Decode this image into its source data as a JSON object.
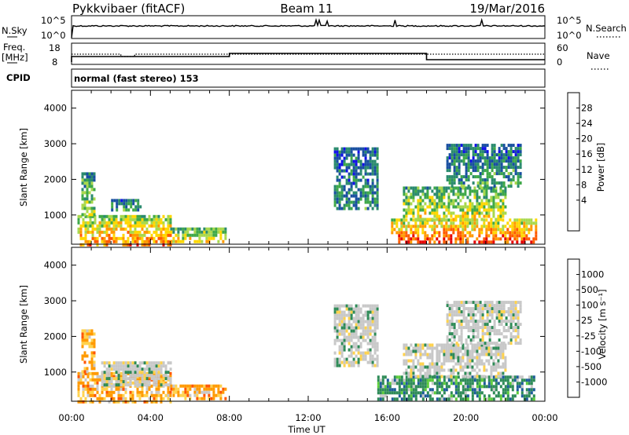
{
  "header": {
    "radar": "Pykkvibaer (fitACF)",
    "beam": "Beam 11",
    "date": "19/Mar/2016"
  },
  "top_panels": {
    "nsky_label": "N.Sky",
    "nsearch_label": "N.Search",
    "noise_ticks": [
      "10^5",
      "10^0"
    ],
    "freq_label": "Freq.",
    "freq_unit": "[MHz]",
    "freq_ticks": [
      "18",
      "8"
    ],
    "nave_label": "Nave",
    "nave_ticks": [
      "60",
      "0"
    ],
    "cpid_label": "CPID",
    "cpid_value": "normal (fast stereo) 153"
  },
  "chart_data": [
    {
      "type": "heatmap",
      "name": "power",
      "ylabel": "Slant Range [km]",
      "xlabel": "",
      "ylim": [
        180,
        4500
      ],
      "yticks": [
        1000,
        2000,
        3000,
        4000
      ],
      "x_ticks": [
        "00:00",
        "04:00",
        "08:00",
        "12:00",
        "16:00",
        "20:00",
        "00:00"
      ],
      "colorbar": {
        "label": "Power [dB]",
        "ticks": [
          "28",
          "24",
          "20",
          "16",
          "12",
          "8",
          "4"
        ],
        "colors": [
          "#e60000",
          "#ff5a00",
          "#ff9900",
          "#ffd700",
          "#a8d84c",
          "#3ea848",
          "#2a8a6e",
          "#184fa0",
          "#1010e8"
        ]
      },
      "echo_regions": [
        {
          "t0": 0.3,
          "t1": 5.0,
          "r0": 200,
          "r1": 1000,
          "level": 0.75
        },
        {
          "t0": 0.5,
          "t1": 1.2,
          "r0": 1000,
          "r1": 2200,
          "level": 0.45
        },
        {
          "t0": 2.0,
          "t1": 3.5,
          "r0": 1100,
          "r1": 1450,
          "level": 0.35
        },
        {
          "t0": 5.0,
          "t1": 7.8,
          "r0": 250,
          "r1": 650,
          "level": 0.6
        },
        {
          "t0": 13.3,
          "t1": 15.5,
          "r0": 1200,
          "r1": 2900,
          "level": 0.25
        },
        {
          "t0": 16.2,
          "t1": 23.5,
          "r0": 250,
          "r1": 900,
          "level": 0.85
        },
        {
          "t0": 16.8,
          "t1": 22.0,
          "r0": 900,
          "r1": 1800,
          "level": 0.55
        },
        {
          "t0": 19.0,
          "t1": 22.8,
          "r0": 1800,
          "r1": 3000,
          "level": 0.3
        }
      ]
    },
    {
      "type": "heatmap",
      "name": "velocity",
      "ylabel": "Slant Range [km]",
      "xlabel": "Time UT",
      "ylim": [
        180,
        4500
      ],
      "yticks": [
        1000,
        2000,
        3000,
        4000
      ],
      "x_ticks": [
        "00:00",
        "04:00",
        "08:00",
        "12:00",
        "16:00",
        "20:00",
        "00:00"
      ],
      "colorbar": {
        "label": "Velocity [m s⁻¹]",
        "ticks": [
          "1000",
          "500",
          "100",
          "25",
          "-25",
          "-100",
          "-500",
          "-1000"
        ],
        "colors": [
          "#1d2fd0",
          "#1e5c9a",
          "#2e8b57",
          "#5ccc3a",
          "#c8c8c8",
          "#ffd24d",
          "#ff9a00",
          "#ff5500",
          "#e60000"
        ]
      },
      "echo_regions": [
        {
          "t0": 0.3,
          "t1": 5.0,
          "r0": 200,
          "r1": 1000,
          "mode": "neg"
        },
        {
          "t0": 0.5,
          "t1": 1.2,
          "r0": 1000,
          "r1": 2200,
          "mode": "neg"
        },
        {
          "t0": 1.5,
          "t1": 5.0,
          "r0": 600,
          "r1": 1300,
          "mode": "zero"
        },
        {
          "t0": 5.0,
          "t1": 7.8,
          "r0": 250,
          "r1": 650,
          "mode": "neg"
        },
        {
          "t0": 13.3,
          "t1": 15.5,
          "r0": 1200,
          "r1": 2900,
          "mode": "zero"
        },
        {
          "t0": 15.5,
          "t1": 23.5,
          "r0": 250,
          "r1": 900,
          "mode": "pos"
        },
        {
          "t0": 16.8,
          "t1": 22.0,
          "r0": 900,
          "r1": 1800,
          "mode": "zero"
        },
        {
          "t0": 19.0,
          "t1": 22.8,
          "r0": 1800,
          "r1": 3000,
          "mode": "zero"
        }
      ]
    }
  ]
}
